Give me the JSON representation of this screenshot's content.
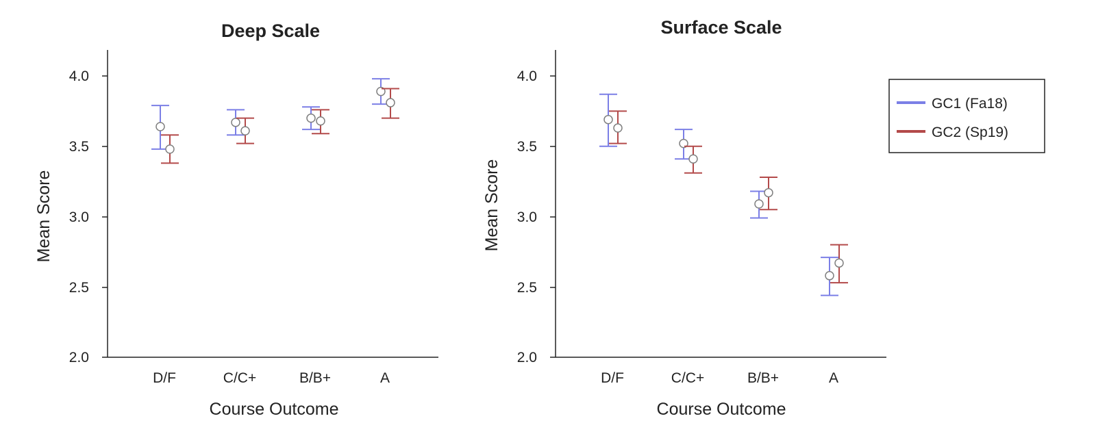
{
  "chart_data": [
    {
      "type": "scatter",
      "title": "Deep Scale",
      "xlabel": "Course Outcome",
      "ylabel": "Mean Score",
      "categories": [
        "D/F",
        "C/C+",
        "B/B+",
        "A"
      ],
      "ylim": [
        2.0,
        4.2
      ],
      "yticks": [
        "2.0",
        "2.5",
        "3.0",
        "3.5",
        "4.0"
      ],
      "grid": false,
      "series": [
        {
          "name": "GC1 (Fa18)",
          "color": "#7b7fe6",
          "values": [
            3.64,
            3.67,
            3.7,
            3.89
          ],
          "err_low": [
            3.48,
            3.58,
            3.62,
            3.8
          ],
          "err_high": [
            3.79,
            3.76,
            3.78,
            3.98
          ]
        },
        {
          "name": "GC2 (Sp19)",
          "color": "#b34a4a",
          "values": [
            3.48,
            3.61,
            3.68,
            3.81
          ],
          "err_low": [
            3.38,
            3.52,
            3.59,
            3.7
          ],
          "err_high": [
            3.58,
            3.7,
            3.76,
            3.91
          ]
        }
      ]
    },
    {
      "type": "scatter",
      "title": "Surface Scale",
      "xlabel": "Course Outcome",
      "ylabel": "Mean Score",
      "categories": [
        "D/F",
        "C/C+",
        "B/B+",
        "A"
      ],
      "ylim": [
        2.0,
        4.2
      ],
      "yticks": [
        "2.0",
        "2.5",
        "3.0",
        "3.5",
        "4.0"
      ],
      "grid": false,
      "legend": "top-right",
      "series": [
        {
          "name": "GC1 (Fa18)",
          "color": "#7b7fe6",
          "values": [
            3.69,
            3.52,
            3.09,
            2.58
          ],
          "err_low": [
            3.5,
            3.41,
            2.99,
            2.44
          ],
          "err_high": [
            3.87,
            3.62,
            3.18,
            2.71
          ]
        },
        {
          "name": "GC2 (Sp19)",
          "color": "#b34a4a",
          "values": [
            3.63,
            3.41,
            3.17,
            2.67
          ],
          "err_low": [
            3.52,
            3.31,
            3.05,
            2.53
          ],
          "err_high": [
            3.75,
            3.5,
            3.28,
            2.8
          ]
        }
      ]
    }
  ]
}
